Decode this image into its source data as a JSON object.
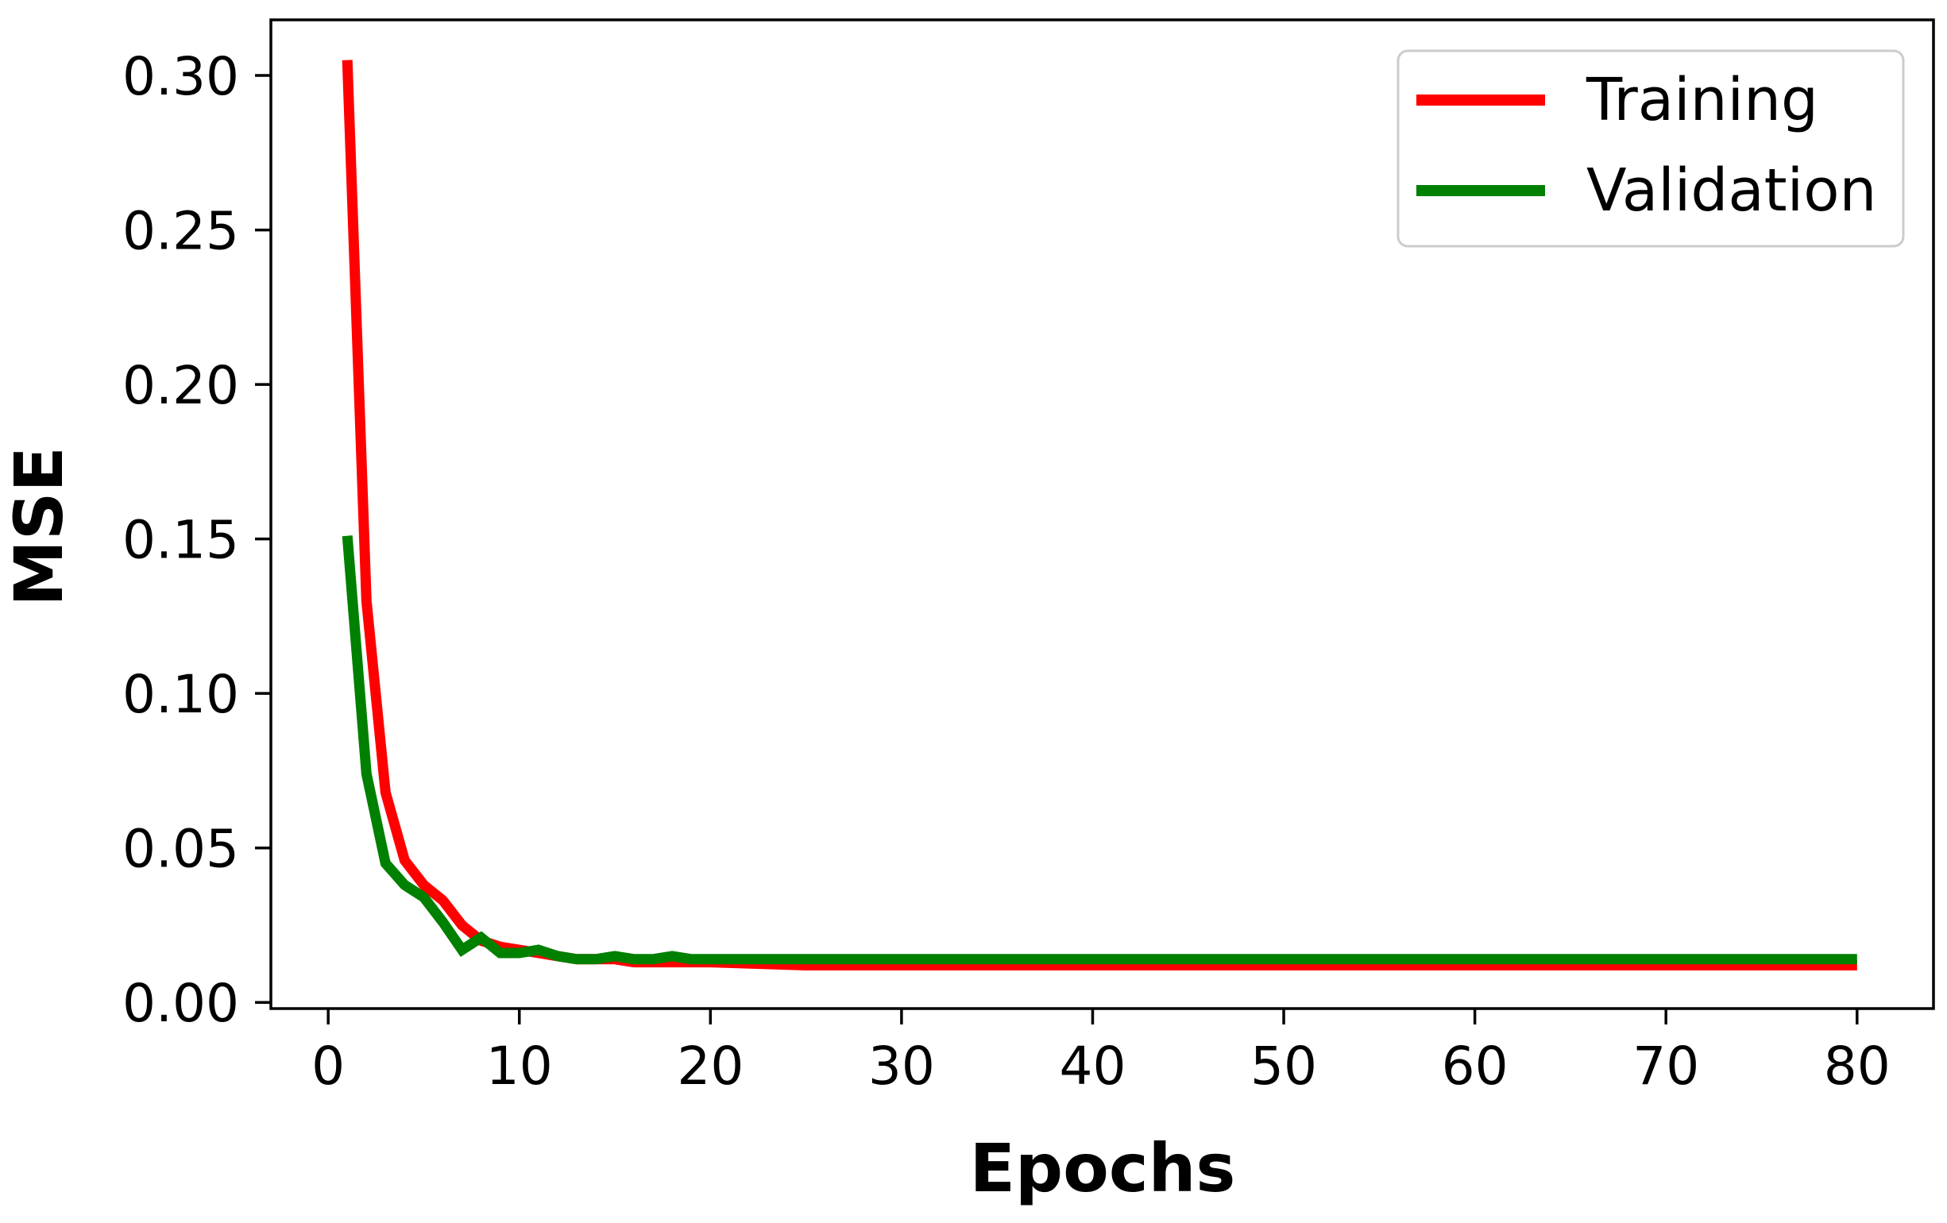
{
  "chart_data": {
    "type": "line",
    "xlabel": "Epochs",
    "ylabel": "MSE",
    "xlim": [
      -3,
      84
    ],
    "ylim": [
      -0.002,
      0.318
    ],
    "xticks": [
      0,
      10,
      20,
      30,
      40,
      50,
      60,
      70,
      80
    ],
    "xtick_labels": [
      "0",
      "10",
      "20",
      "30",
      "40",
      "50",
      "60",
      "70",
      "80"
    ],
    "yticks": [
      0.0,
      0.05,
      0.1,
      0.15,
      0.2,
      0.25,
      0.3
    ],
    "ytick_labels": [
      "0.00",
      "0.05",
      "0.10",
      "0.15",
      "0.20",
      "0.25",
      "0.30"
    ],
    "grid": false,
    "legend_position": "top-right",
    "series": [
      {
        "name": "Training",
        "color": "#ff0000",
        "x": [
          1,
          2,
          3,
          4,
          5,
          6,
          7,
          8,
          9,
          10,
          11,
          12,
          13,
          14,
          15,
          16,
          17,
          18,
          19,
          20,
          25,
          30,
          35,
          40,
          45,
          50,
          55,
          60,
          65,
          70,
          75,
          80
        ],
        "y": [
          0.305,
          0.13,
          0.068,
          0.046,
          0.038,
          0.033,
          0.025,
          0.02,
          0.018,
          0.017,
          0.016,
          0.015,
          0.014,
          0.014,
          0.014,
          0.013,
          0.013,
          0.013,
          0.013,
          0.013,
          0.012,
          0.012,
          0.012,
          0.012,
          0.012,
          0.012,
          0.012,
          0.012,
          0.012,
          0.012,
          0.012,
          0.012
        ]
      },
      {
        "name": "Validation",
        "color": "#008000",
        "x": [
          1,
          2,
          3,
          4,
          5,
          6,
          7,
          8,
          9,
          10,
          11,
          12,
          13,
          14,
          15,
          16,
          17,
          18,
          19,
          20,
          25,
          30,
          35,
          40,
          45,
          50,
          55,
          60,
          65,
          70,
          75,
          80
        ],
        "y": [
          0.151,
          0.074,
          0.045,
          0.038,
          0.034,
          0.026,
          0.017,
          0.021,
          0.016,
          0.016,
          0.017,
          0.015,
          0.014,
          0.014,
          0.015,
          0.014,
          0.014,
          0.015,
          0.014,
          0.014,
          0.014,
          0.014,
          0.014,
          0.014,
          0.014,
          0.014,
          0.014,
          0.014,
          0.014,
          0.014,
          0.014,
          0.014
        ]
      }
    ]
  }
}
